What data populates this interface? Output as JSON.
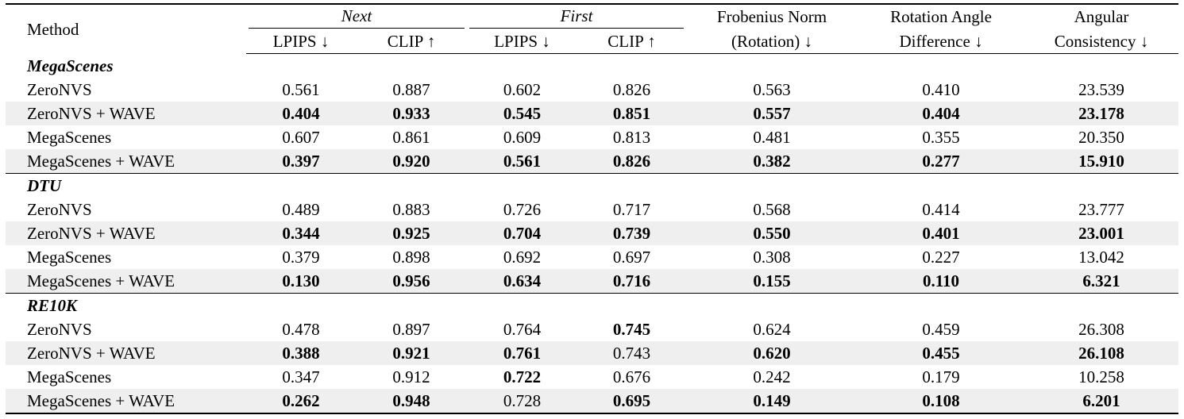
{
  "table": {
    "header": {
      "method": "Method",
      "groups": [
        "Next",
        "First"
      ],
      "subcolumns": [
        "LPIPS ↓",
        "CLIP ↑",
        "LPIPS ↓",
        "CLIP ↑"
      ],
      "metrics": [
        [
          "Frobenius Norm",
          "(Rotation) ↓"
        ],
        [
          "Rotation Angle",
          "Difference ↓"
        ],
        [
          "Angular",
          "Consistency ↓"
        ]
      ]
    },
    "sections": [
      {
        "name": "MegaScenes",
        "rows": [
          {
            "method": "ZeroNVS",
            "values": [
              "0.561",
              "0.887",
              "0.602",
              "0.826",
              "0.563",
              "0.410",
              "23.539"
            ],
            "bold": [
              false,
              false,
              false,
              false,
              false,
              false,
              false
            ],
            "shaded": false
          },
          {
            "method": "ZeroNVS + WAVE",
            "values": [
              "0.404",
              "0.933",
              "0.545",
              "0.851",
              "0.557",
              "0.404",
              "23.178"
            ],
            "bold": [
              true,
              true,
              true,
              true,
              true,
              true,
              true
            ],
            "shaded": true
          },
          {
            "method": "MegaScenes",
            "values": [
              "0.607",
              "0.861",
              "0.609",
              "0.813",
              "0.481",
              "0.355",
              "20.350"
            ],
            "bold": [
              false,
              false,
              false,
              false,
              false,
              false,
              false
            ],
            "shaded": false
          },
          {
            "method": "MegaScenes + WAVE",
            "values": [
              "0.397",
              "0.920",
              "0.561",
              "0.826",
              "0.382",
              "0.277",
              "15.910"
            ],
            "bold": [
              true,
              true,
              true,
              true,
              true,
              true,
              true
            ],
            "shaded": true
          }
        ]
      },
      {
        "name": "DTU",
        "rows": [
          {
            "method": "ZeroNVS",
            "values": [
              "0.489",
              "0.883",
              "0.726",
              "0.717",
              "0.568",
              "0.414",
              "23.777"
            ],
            "bold": [
              false,
              false,
              false,
              false,
              false,
              false,
              false
            ],
            "shaded": false
          },
          {
            "method": "ZeroNVS + WAVE",
            "values": [
              "0.344",
              "0.925",
              "0.704",
              "0.739",
              "0.550",
              "0.401",
              "23.001"
            ],
            "bold": [
              true,
              true,
              true,
              true,
              true,
              true,
              true
            ],
            "shaded": true
          },
          {
            "method": "MegaScenes",
            "values": [
              "0.379",
              "0.898",
              "0.692",
              "0.697",
              "0.308",
              "0.227",
              "13.042"
            ],
            "bold": [
              false,
              false,
              false,
              false,
              false,
              false,
              false
            ],
            "shaded": false
          },
          {
            "method": "MegaScenes + WAVE",
            "values": [
              "0.130",
              "0.956",
              "0.634",
              "0.716",
              "0.155",
              "0.110",
              "6.321"
            ],
            "bold": [
              true,
              true,
              true,
              true,
              true,
              true,
              true
            ],
            "shaded": true
          }
        ]
      },
      {
        "name": "RE10K",
        "rows": [
          {
            "method": "ZeroNVS",
            "values": [
              "0.478",
              "0.897",
              "0.764",
              "0.745",
              "0.624",
              "0.459",
              "26.308"
            ],
            "bold": [
              false,
              false,
              false,
              true,
              false,
              false,
              false
            ],
            "shaded": false
          },
          {
            "method": "ZeroNVS + WAVE",
            "values": [
              "0.388",
              "0.921",
              "0.761",
              "0.743",
              "0.620",
              "0.455",
              "26.108"
            ],
            "bold": [
              true,
              true,
              true,
              false,
              true,
              true,
              true
            ],
            "shaded": true
          },
          {
            "method": "MegaScenes",
            "values": [
              "0.347",
              "0.912",
              "0.722",
              "0.676",
              "0.242",
              "0.179",
              "10.258"
            ],
            "bold": [
              false,
              false,
              true,
              false,
              false,
              false,
              false
            ],
            "shaded": false
          },
          {
            "method": "MegaScenes + WAVE",
            "values": [
              "0.262",
              "0.948",
              "0.728",
              "0.695",
              "0.149",
              "0.108",
              "6.201"
            ],
            "bold": [
              true,
              true,
              false,
              true,
              true,
              true,
              true
            ],
            "shaded": true
          }
        ]
      }
    ]
  }
}
